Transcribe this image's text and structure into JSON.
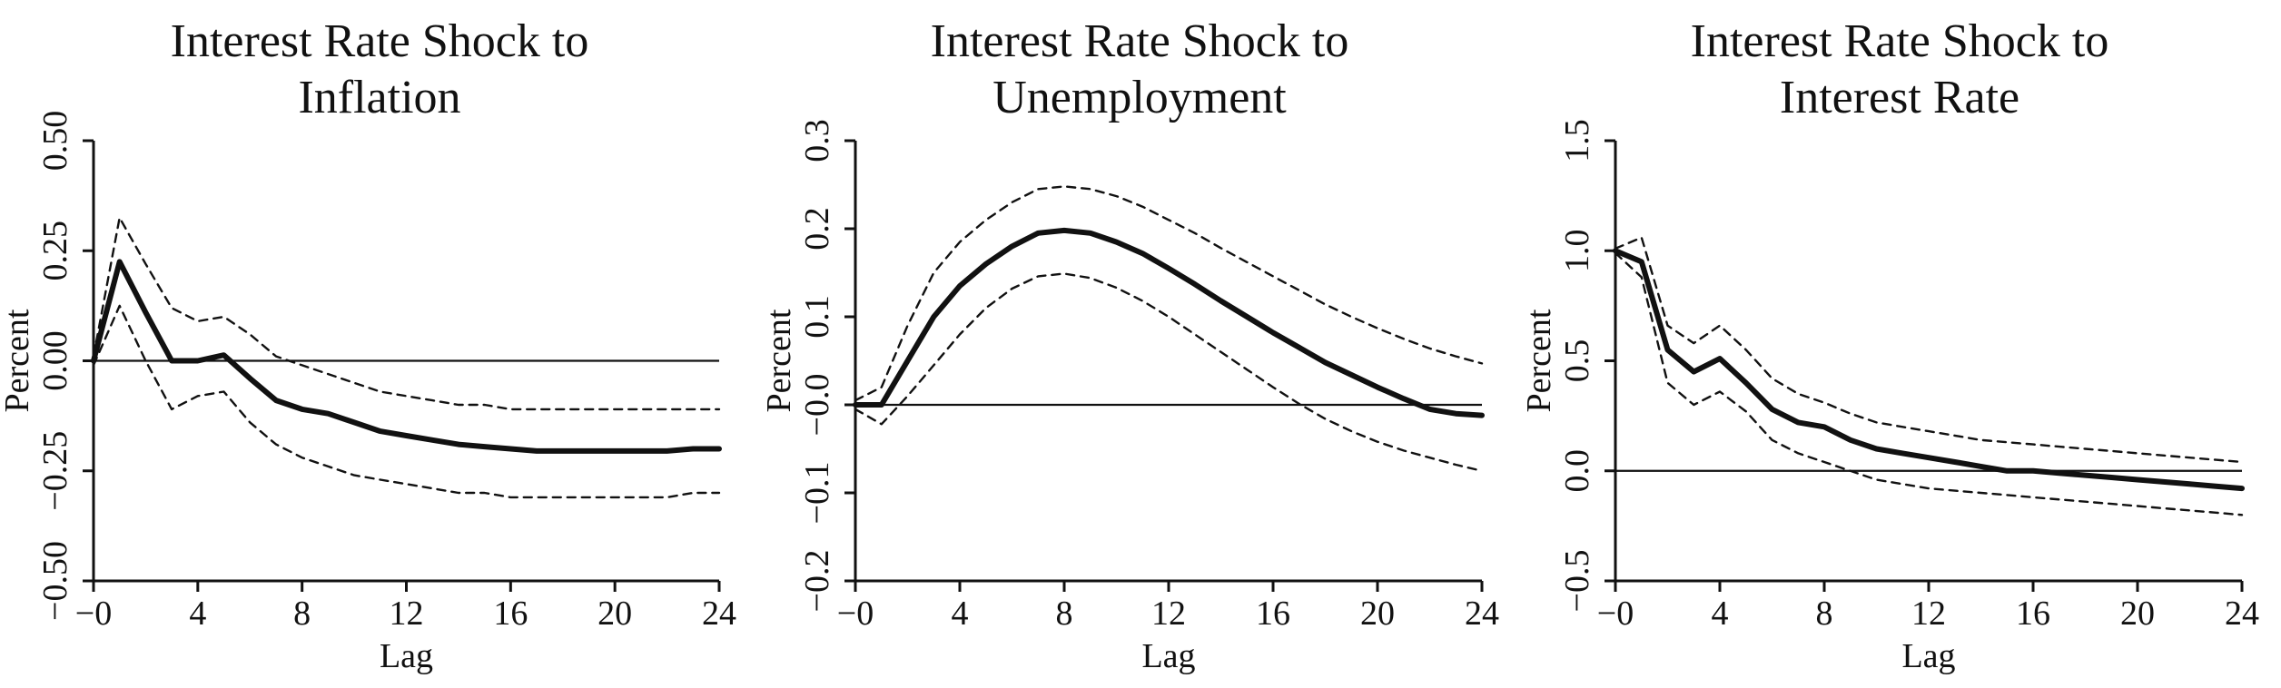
{
  "chart_data": [
    {
      "type": "line",
      "title": [
        "Interest Rate Shock to",
        "Inflation"
      ],
      "xlabel": "Lag",
      "ylabel": "Percent",
      "xlim": [
        0,
        24
      ],
      "ylim": [
        -0.5,
        0.5
      ],
      "x_ticks": [
        0,
        4,
        8,
        12,
        16,
        20,
        24
      ],
      "y_ticks": [
        -0.5,
        -0.25,
        0.0,
        0.25,
        0.5
      ],
      "x_tick_labels": [
        "−0",
        "4",
        "8",
        "12",
        "16",
        "20",
        "24"
      ],
      "y_tick_labels": [
        "−0.50",
        "−0.25",
        "0.00",
        "0.25",
        "0.50"
      ],
      "zero_line": 0,
      "grid": false,
      "series": [
        {
          "style": "solid",
          "x": [
            0,
            1,
            2,
            3,
            4,
            5,
            6,
            7,
            8,
            9,
            10,
            11,
            12,
            13,
            14,
            15,
            16,
            17,
            18,
            19,
            20,
            21,
            22,
            23,
            24
          ],
          "values": [
            0.0,
            0.225,
            0.11,
            0.0,
            0.0,
            0.013,
            -0.04,
            -0.09,
            -0.11,
            -0.12,
            -0.14,
            -0.16,
            -0.17,
            -0.18,
            -0.19,
            -0.195,
            -0.2,
            -0.205,
            -0.205,
            -0.205,
            -0.205,
            -0.205,
            -0.205,
            -0.2,
            -0.2
          ]
        },
        {
          "style": "dashed",
          "x": [
            0,
            1,
            2,
            3,
            4,
            5,
            6,
            7,
            8,
            9,
            10,
            11,
            12,
            13,
            14,
            15,
            16,
            17,
            18,
            19,
            20,
            21,
            22,
            23,
            24
          ],
          "values": [
            0.01,
            0.325,
            0.22,
            0.12,
            0.09,
            0.1,
            0.06,
            0.01,
            -0.01,
            -0.03,
            -0.05,
            -0.07,
            -0.08,
            -0.09,
            -0.1,
            -0.1,
            -0.11,
            -0.11,
            -0.11,
            -0.11,
            -0.11,
            -0.11,
            -0.11,
            -0.11,
            -0.11
          ]
        },
        {
          "style": "dashed",
          "x": [
            0,
            1,
            2,
            3,
            4,
            5,
            6,
            7,
            8,
            9,
            10,
            11,
            12,
            13,
            14,
            15,
            16,
            17,
            18,
            19,
            20,
            21,
            22,
            23,
            24
          ],
          "values": [
            -0.01,
            0.125,
            0.0,
            -0.11,
            -0.08,
            -0.07,
            -0.14,
            -0.19,
            -0.22,
            -0.24,
            -0.26,
            -0.27,
            -0.28,
            -0.29,
            -0.3,
            -0.3,
            -0.31,
            -0.31,
            -0.31,
            -0.31,
            -0.31,
            -0.31,
            -0.31,
            -0.3,
            -0.3
          ]
        }
      ]
    },
    {
      "type": "line",
      "title": [
        "Interest Rate Shock to",
        "Unemployment"
      ],
      "xlabel": "Lag",
      "ylabel": "Percent",
      "xlim": [
        0,
        24
      ],
      "ylim": [
        -0.2,
        0.3
      ],
      "x_ticks": [
        0,
        4,
        8,
        12,
        16,
        20,
        24
      ],
      "y_ticks": [
        -0.2,
        -0.1,
        0.0,
        0.1,
        0.2,
        0.3
      ],
      "x_tick_labels": [
        "−0",
        "4",
        "8",
        "12",
        "16",
        "20",
        "24"
      ],
      "y_tick_labels": [
        "−0.2",
        "−0.1",
        "−0.0",
        "0.1",
        "0.2",
        "0.3"
      ],
      "zero_line": 0,
      "grid": false,
      "series": [
        {
          "style": "solid",
          "x": [
            0,
            1,
            2,
            3,
            4,
            5,
            6,
            7,
            8,
            9,
            10,
            11,
            12,
            13,
            14,
            15,
            16,
            17,
            18,
            19,
            20,
            21,
            22,
            23,
            24
          ],
          "values": [
            0.0,
            0.0,
            0.05,
            0.1,
            0.135,
            0.16,
            0.18,
            0.195,
            0.198,
            0.195,
            0.185,
            0.172,
            0.155,
            0.137,
            0.118,
            0.1,
            0.082,
            0.065,
            0.048,
            0.034,
            0.02,
            0.007,
            -0.005,
            -0.01,
            -0.012
          ]
        },
        {
          "style": "dashed",
          "x": [
            0,
            1,
            2,
            3,
            4,
            5,
            6,
            7,
            8,
            9,
            10,
            11,
            12,
            13,
            14,
            15,
            16,
            17,
            18,
            19,
            20,
            21,
            22,
            23,
            24
          ],
          "values": [
            0.005,
            0.02,
            0.09,
            0.15,
            0.185,
            0.21,
            0.23,
            0.245,
            0.248,
            0.245,
            0.237,
            0.225,
            0.21,
            0.195,
            0.178,
            0.162,
            0.146,
            0.13,
            0.114,
            0.1,
            0.087,
            0.075,
            0.064,
            0.055,
            0.047
          ]
        },
        {
          "style": "dashed",
          "x": [
            0,
            1,
            2,
            3,
            4,
            5,
            6,
            7,
            8,
            9,
            10,
            11,
            12,
            13,
            14,
            15,
            16,
            17,
            18,
            19,
            20,
            21,
            22,
            23,
            24
          ],
          "values": [
            -0.005,
            -0.022,
            0.01,
            0.045,
            0.08,
            0.11,
            0.132,
            0.146,
            0.149,
            0.144,
            0.133,
            0.118,
            0.1,
            0.08,
            0.06,
            0.04,
            0.02,
            0.001,
            -0.016,
            -0.03,
            -0.042,
            -0.052,
            -0.06,
            -0.068,
            -0.075
          ]
        }
      ]
    },
    {
      "type": "line",
      "title": [
        "Interest Rate Shock to",
        "Interest Rate"
      ],
      "xlabel": "Lag",
      "ylabel": "Percent",
      "xlim": [
        0,
        24
      ],
      "ylim": [
        -0.5,
        1.5
      ],
      "x_ticks": [
        0,
        4,
        8,
        12,
        16,
        20,
        24
      ],
      "y_ticks": [
        -0.5,
        0.0,
        0.5,
        1.0,
        1.5
      ],
      "x_tick_labels": [
        "−0",
        "4",
        "8",
        "12",
        "16",
        "20",
        "24"
      ],
      "y_tick_labels": [
        "−0.5",
        "0.0",
        "0.5",
        "1.0",
        "1.5"
      ],
      "zero_line": 0,
      "grid": false,
      "series": [
        {
          "style": "solid",
          "x": [
            0,
            1,
            2,
            3,
            4,
            5,
            6,
            7,
            8,
            9,
            10,
            11,
            12,
            13,
            14,
            15,
            16,
            17,
            18,
            19,
            20,
            21,
            22,
            23,
            24
          ],
          "values": [
            1.0,
            0.95,
            0.55,
            0.45,
            0.51,
            0.4,
            0.28,
            0.22,
            0.2,
            0.14,
            0.1,
            0.08,
            0.06,
            0.04,
            0.02,
            0.0,
            0.0,
            -0.01,
            -0.02,
            -0.03,
            -0.04,
            -0.05,
            -0.06,
            -0.07,
            -0.08
          ]
        },
        {
          "style": "dashed",
          "x": [
            0,
            1,
            2,
            3,
            4,
            5,
            6,
            7,
            8,
            9,
            10,
            11,
            12,
            13,
            14,
            15,
            16,
            17,
            18,
            19,
            20,
            21,
            22,
            23,
            24
          ],
          "values": [
            1.01,
            1.06,
            0.66,
            0.58,
            0.66,
            0.55,
            0.42,
            0.35,
            0.31,
            0.26,
            0.22,
            0.2,
            0.18,
            0.16,
            0.14,
            0.13,
            0.12,
            0.11,
            0.1,
            0.09,
            0.08,
            0.07,
            0.06,
            0.05,
            0.04
          ]
        },
        {
          "style": "dashed",
          "x": [
            0,
            1,
            2,
            3,
            4,
            5,
            6,
            7,
            8,
            9,
            10,
            11,
            12,
            13,
            14,
            15,
            16,
            17,
            18,
            19,
            20,
            21,
            22,
            23,
            24
          ],
          "values": [
            0.99,
            0.88,
            0.4,
            0.3,
            0.36,
            0.27,
            0.14,
            0.08,
            0.04,
            0.0,
            -0.04,
            -0.06,
            -0.08,
            -0.09,
            -0.1,
            -0.11,
            -0.12,
            -0.13,
            -0.14,
            -0.15,
            -0.16,
            -0.17,
            -0.18,
            -0.19,
            -0.2
          ]
        }
      ]
    }
  ]
}
